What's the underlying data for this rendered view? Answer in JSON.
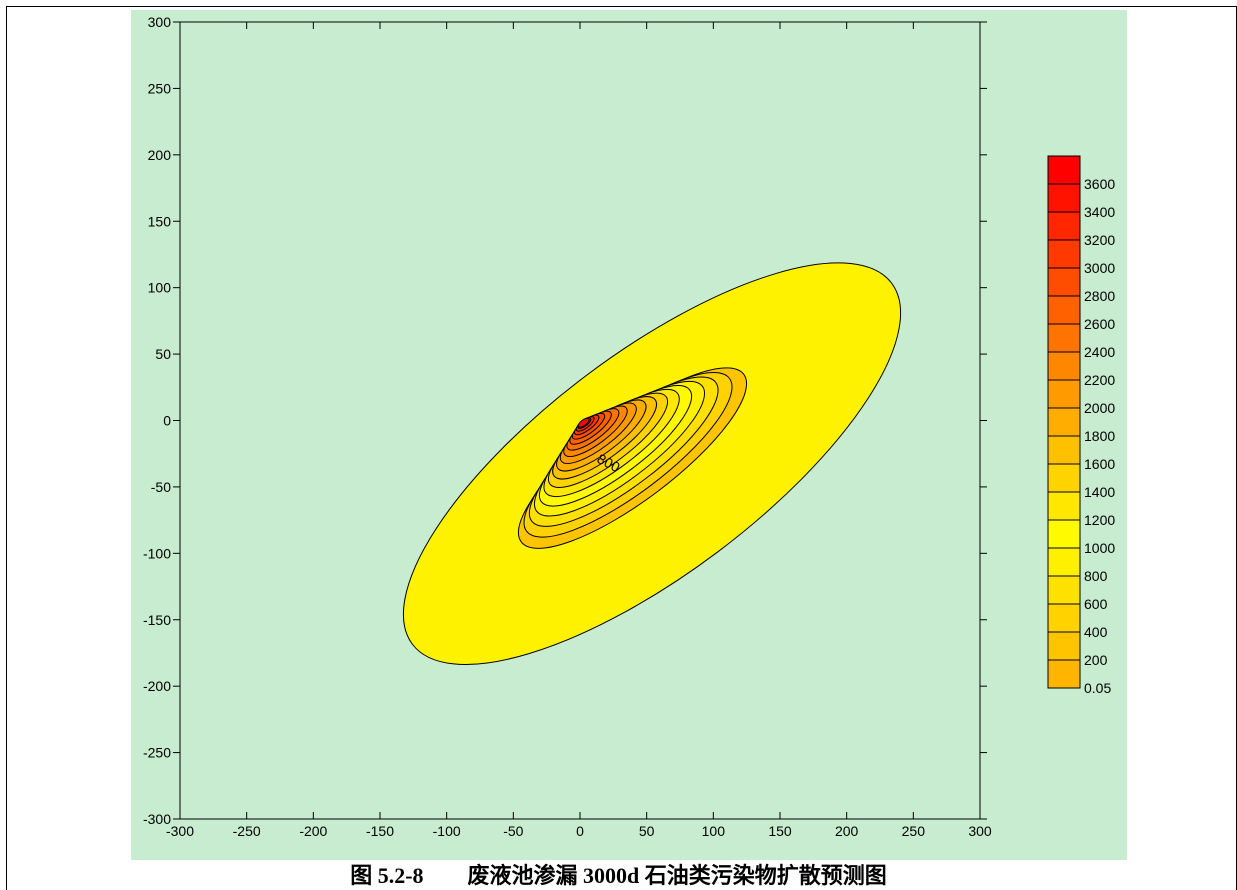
{
  "caption": "图 5.2-8        废液池渗漏 3000d 石油类污染物扩散预测图",
  "colors": {
    "background": "#c8ecd0",
    "axis": "#000000",
    "contour_line": "#000000"
  },
  "chart_data": {
    "type": "contour",
    "title": "",
    "xlabel": "",
    "ylabel": "",
    "xlim": [
      -300,
      300
    ],
    "ylim": [
      -300,
      300
    ],
    "x_ticks": [
      -300,
      -250,
      -200,
      -150,
      -100,
      -50,
      0,
      50,
      100,
      150,
      200,
      250,
      300
    ],
    "y_ticks": [
      -300,
      -250,
      -200,
      -150,
      -100,
      -50,
      0,
      50,
      100,
      150,
      200,
      250,
      300
    ],
    "source_point": {
      "x": 0,
      "y": 0
    },
    "plume_axis_angle_deg": -37,
    "outer_contour_extent": {
      "x_min": -140,
      "x_max": 248,
      "y_min": -168,
      "y_max": 103
    },
    "contour_levels": [
      0.05,
      200,
      400,
      600,
      800,
      1000,
      1200,
      1400,
      1600,
      1800,
      2000,
      2200,
      2400,
      2600,
      2800,
      3000,
      3200,
      3400,
      3600
    ],
    "contour_labels": [
      {
        "text": "800",
        "x": 12,
        "y": -25
      }
    ],
    "colorbar": {
      "labels": [
        "3600",
        "3400",
        "3200",
        "3000",
        "2800",
        "2600",
        "2400",
        "2200",
        "2000",
        "1800",
        "1600",
        "1400",
        "1200",
        "1000",
        "800",
        "600",
        "400",
        "200",
        "0.05"
      ],
      "colors": [
        "#ff0000",
        "#ff1300",
        "#ff2600",
        "#ff3a00",
        "#ff4d00",
        "#ff6000",
        "#ff7300",
        "#ff8700",
        "#ff9a00",
        "#ffad00",
        "#ffc000",
        "#ffd300",
        "#ffe700",
        "#fffa00",
        "#fff000",
        "#ffe100",
        "#ffd200",
        "#ffc400",
        "#ffb500"
      ]
    }
  }
}
